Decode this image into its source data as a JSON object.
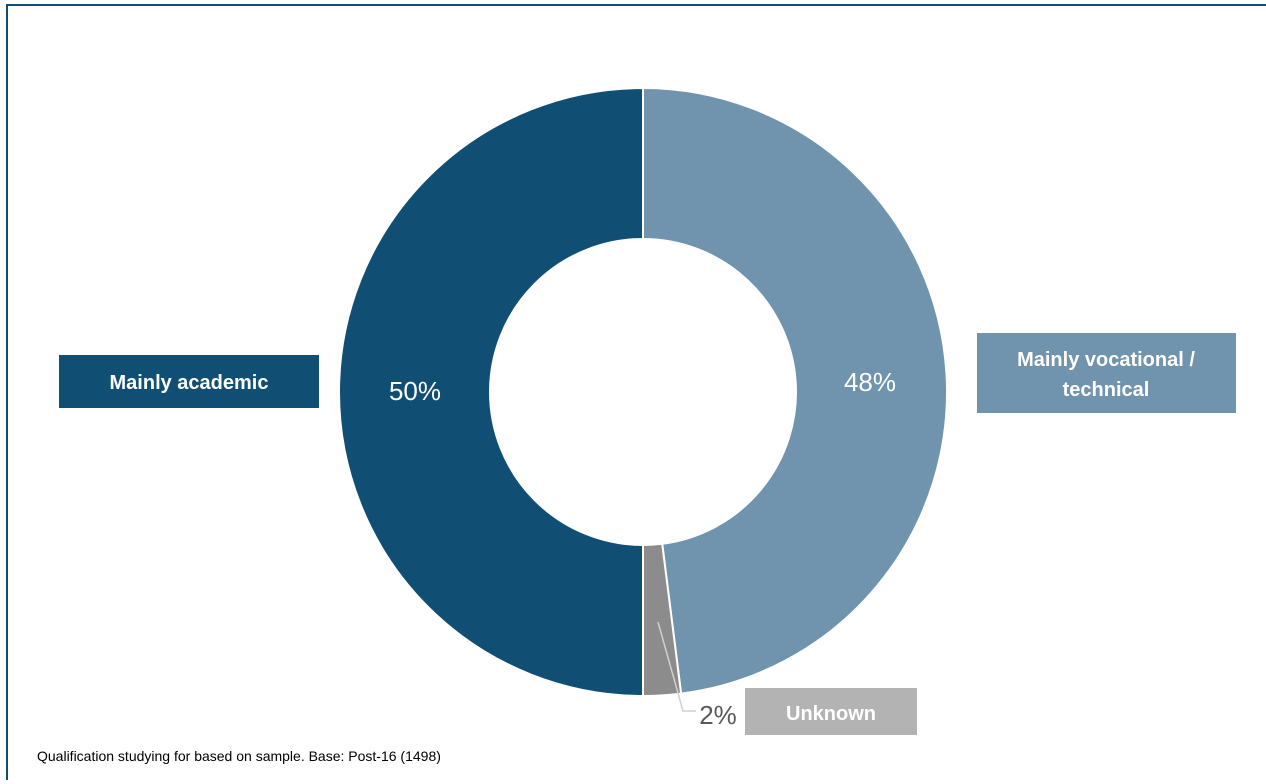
{
  "chart_data": {
    "type": "pie",
    "donut": true,
    "categories": [
      "Mainly vocational / technical",
      "Unknown",
      "Mainly academic"
    ],
    "values": [
      48,
      2,
      50
    ],
    "value_labels": [
      "48%",
      "2%",
      "50%"
    ],
    "colors": [
      "#7093ae",
      "#8c8c8c",
      "#104f73"
    ],
    "label_box_colors": [
      "#7093ae",
      "#b3b3b3",
      "#104f73"
    ],
    "value_label_colors": [
      "#ffffff",
      "#595959",
      "#ffffff"
    ],
    "start_angle_deg": 0,
    "direction": "clockwise",
    "footnote": "Qualification studying for based on sample. Base: Post-16 (1498)"
  }
}
